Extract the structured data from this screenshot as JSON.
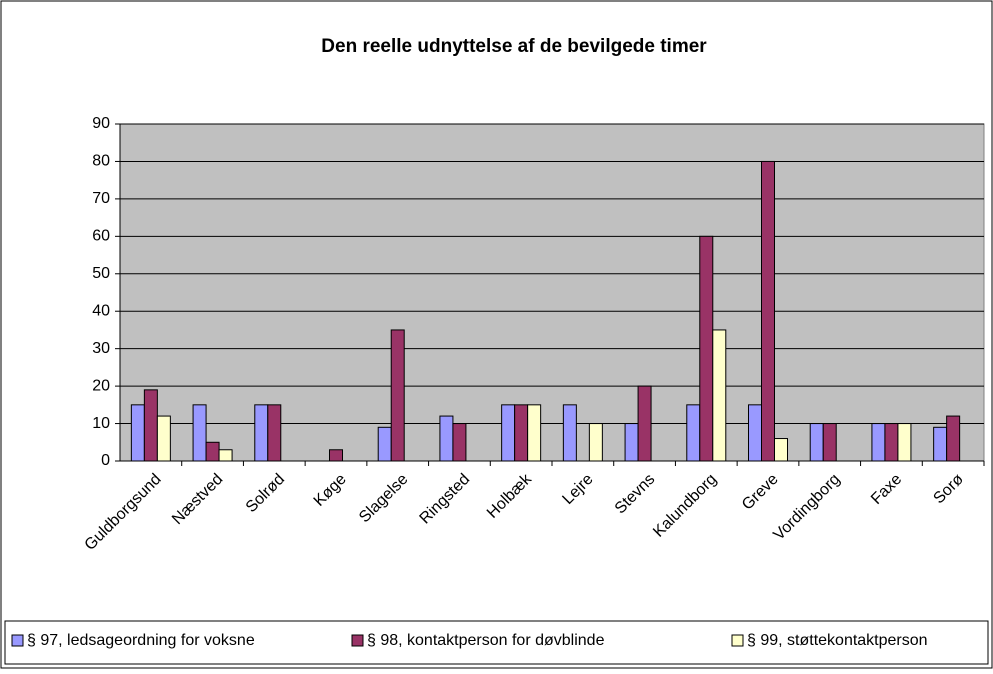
{
  "chart_data": {
    "type": "bar",
    "title": "Den reelle udnyttelse af de bevilgede timer",
    "categories": [
      "Guldborgsund",
      "Næstved",
      "Solrød",
      "Køge",
      "Slagelse",
      "Ringsted",
      "Holbæk",
      "Lejre",
      "Stevns",
      "Kalundborg",
      "Greve",
      "Vordingborg",
      "Faxe",
      "Sorø"
    ],
    "series": [
      {
        "name": "§ 97, ledsageordning for voksne",
        "color": "#9999ff",
        "values": [
          15,
          15,
          15,
          null,
          9,
          12,
          15,
          15,
          10,
          15,
          15,
          10,
          10,
          9
        ]
      },
      {
        "name": "§ 98, kontaktperson for døvblinde",
        "color": "#993366",
        "values": [
          19,
          5,
          15,
          3,
          35,
          10,
          15,
          null,
          20,
          60,
          80,
          10,
          10,
          12
        ]
      },
      {
        "name": "§ 99, støttekontaktperson",
        "color": "#ffffcc",
        "values": [
          12,
          3,
          null,
          null,
          null,
          null,
          15,
          10,
          null,
          35,
          6,
          null,
          10,
          null
        ]
      }
    ],
    "ylim": [
      0,
      90
    ],
    "yticks": [
      0,
      10,
      20,
      30,
      40,
      50,
      60,
      70,
      80,
      90
    ],
    "grid": true,
    "plot_background": "#c0c0c0",
    "legend": "bottom"
  }
}
